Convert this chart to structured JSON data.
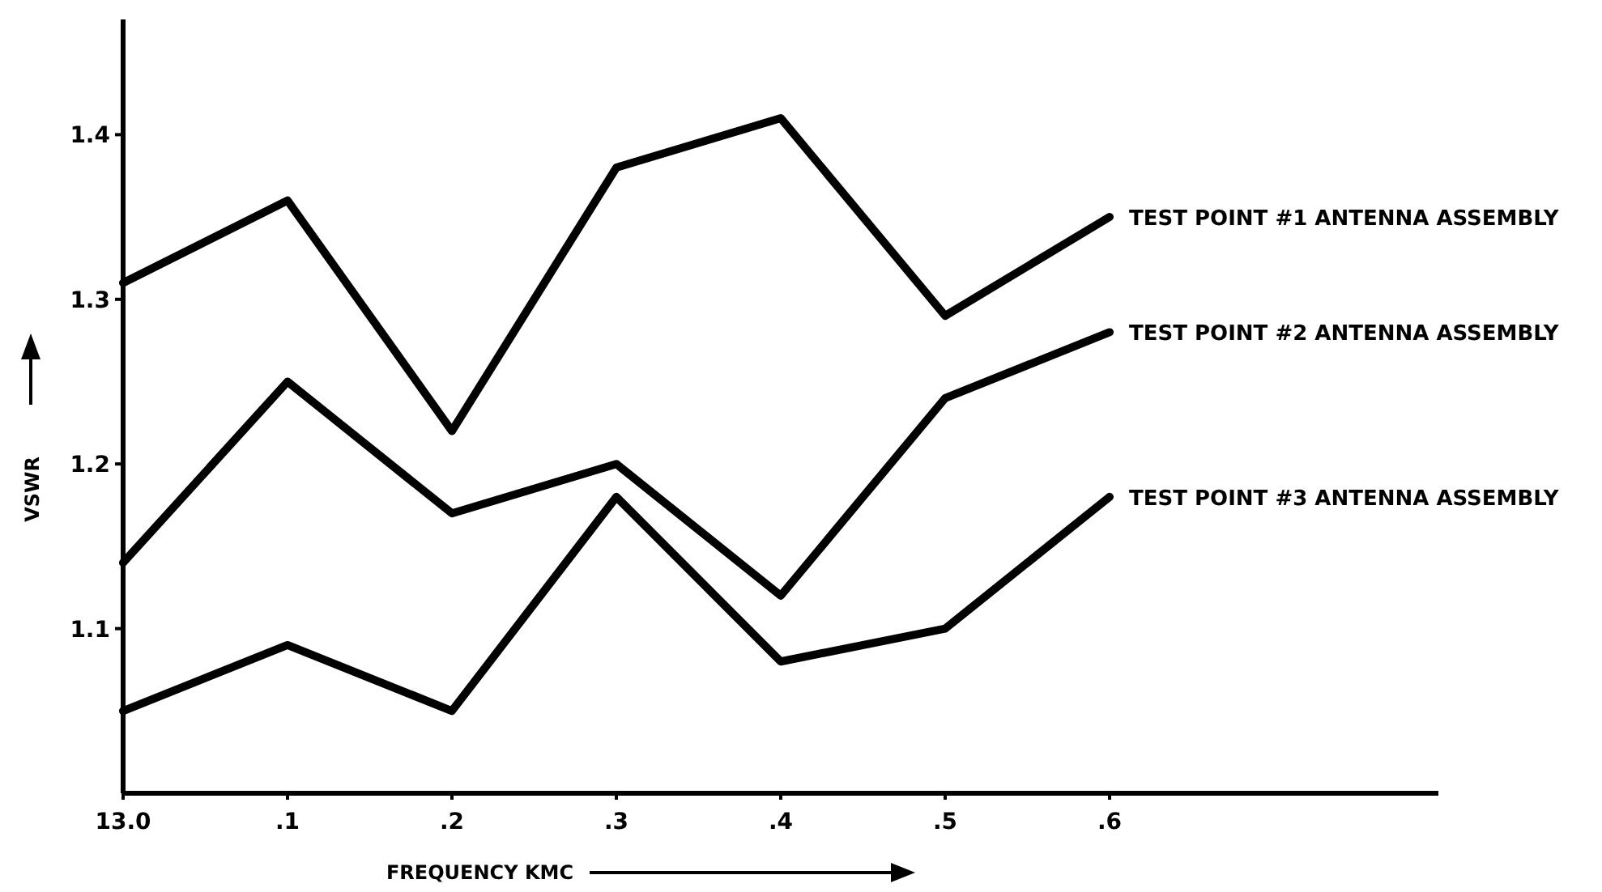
{
  "chart_data": {
    "type": "line",
    "xlabel": "FREQUENCY KMC",
    "ylabel": "VSWR",
    "categories": [
      "13.0",
      ".1",
      ".2",
      ".3",
      ".4",
      ".5",
      ".6"
    ],
    "ylim": [
      1.0,
      1.47
    ],
    "yticks": [
      1.1,
      1.2,
      1.3,
      1.4
    ],
    "grid": false,
    "marker": "none",
    "line_style": "solid",
    "series": [
      {
        "name": "TEST POINT #1 ANTENNA ASSEMBLY",
        "color": "#000000",
        "values": [
          1.31,
          1.36,
          1.22,
          1.38,
          1.41,
          1.29,
          1.35
        ]
      },
      {
        "name": "TEST POINT #2 ANTENNA ASSEMBLY",
        "color": "#000000",
        "values": [
          1.14,
          1.25,
          1.17,
          1.2,
          1.12,
          1.24,
          1.28
        ]
      },
      {
        "name": "TEST POINT #3 ANTENNA ASSEMBLY",
        "color": "#000000",
        "values": [
          1.05,
          1.09,
          1.05,
          1.18,
          1.08,
          1.1,
          1.18
        ]
      }
    ]
  }
}
